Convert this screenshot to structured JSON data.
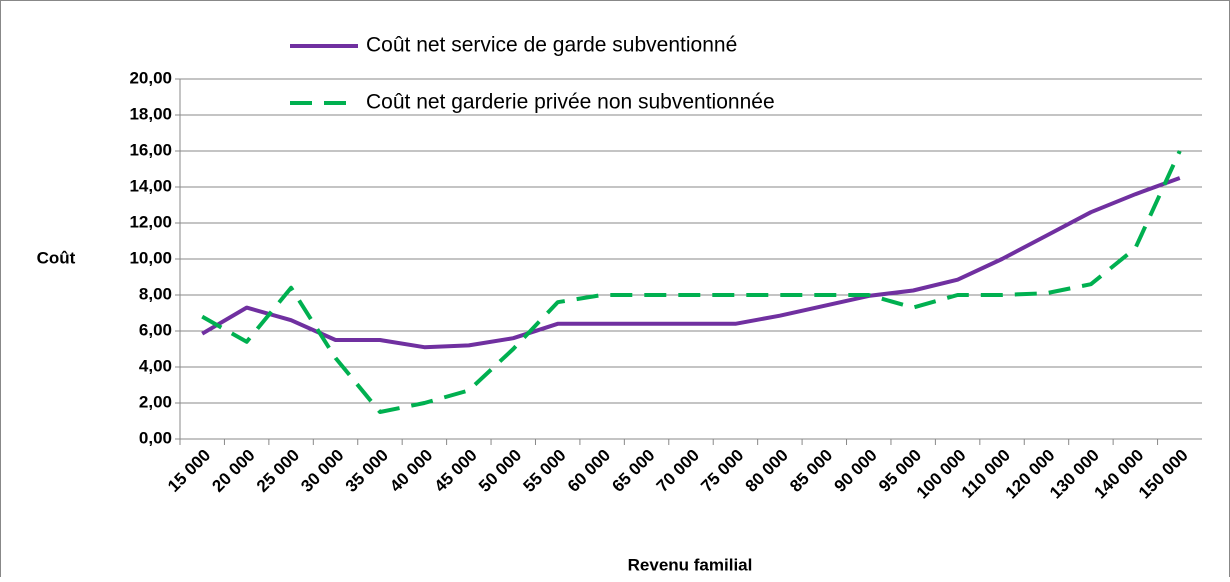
{
  "chart_data": {
    "type": "line",
    "x_label": "Revenu familial",
    "y_label": "Coût",
    "categories": [
      "15 000",
      "20 000",
      "25 000",
      "30 000",
      "35 000",
      "40 000",
      "45 000",
      "50 000",
      "55 000",
      "60 000",
      "65 000",
      "70 000",
      "75 000",
      "80 000",
      "85 000",
      "90 000",
      "95 000",
      "100 000",
      "110 000",
      "120 000",
      "130 000",
      "140 000",
      "150 000"
    ],
    "series": [
      {
        "name": "Coût net service de garde subventionné",
        "color": "#7030a0",
        "dash": false,
        "values": [
          5.85,
          7.3,
          6.6,
          5.5,
          5.5,
          5.1,
          5.2,
          5.6,
          6.4,
          6.4,
          6.4,
          6.4,
          6.4,
          6.85,
          7.4,
          7.95,
          8.25,
          8.85,
          10.0,
          11.3,
          12.6,
          13.6,
          14.5
        ]
      },
      {
        "name": "Coût net garderie privée non subventionnée",
        "color": "#00b050",
        "dash": true,
        "values": [
          6.8,
          5.4,
          8.4,
          4.5,
          1.5,
          2.0,
          2.7,
          5.0,
          7.6,
          8.0,
          8.0,
          8.0,
          8.0,
          8.0,
          8.0,
          8.0,
          7.3,
          8.0,
          8.0,
          8.1,
          8.6,
          10.6,
          16.0
        ]
      }
    ],
    "ylim": [
      0,
      20
    ],
    "yticks": [
      {
        "value": 0,
        "label": "0,00"
      },
      {
        "value": 2,
        "label": "2,00"
      },
      {
        "value": 4,
        "label": "4,00"
      },
      {
        "value": 6,
        "label": "6,00"
      },
      {
        "value": 8,
        "label": "8,00"
      },
      {
        "value": 10,
        "label": "10,00"
      },
      {
        "value": 12,
        "label": "12,00"
      },
      {
        "value": 14,
        "label": "14,00"
      },
      {
        "value": 16,
        "label": "16,00"
      },
      {
        "value": 18,
        "label": "18,00"
      },
      {
        "value": 20,
        "label": "20,00"
      }
    ],
    "grid": true
  }
}
